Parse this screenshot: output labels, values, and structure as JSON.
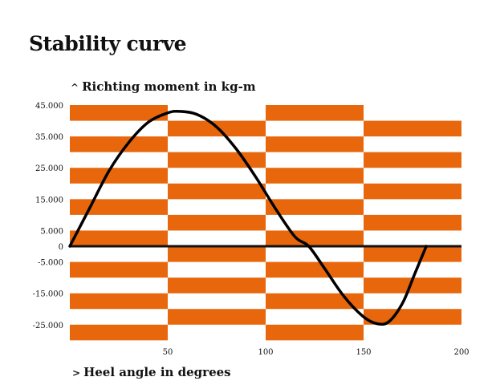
{
  "chart_data": {
    "type": "line",
    "title": "Stability curve",
    "ylabel": "Richting moment in kg-m",
    "xlabel": "Heel angle in degrees",
    "ylabel_arrow": "^",
    "xlabel_arrow": ">",
    "xlim": [
      0,
      200
    ],
    "ylim": [
      -30000,
      45000
    ],
    "x_ticks": [
      50,
      100,
      150,
      200
    ],
    "y_ticks": [
      {
        "value": 45000,
        "label": "45.000"
      },
      {
        "value": 35000,
        "label": "35.000"
      },
      {
        "value": 25000,
        "label": "25.000"
      },
      {
        "value": 15000,
        "label": "15.000"
      },
      {
        "value": 5000,
        "label": "5.000"
      },
      {
        "value": 0,
        "label": "0"
      },
      {
        "value": -5000,
        "label": "-5.000"
      },
      {
        "value": -15000,
        "label": "-15.000"
      },
      {
        "value": -25000,
        "label": "-25.000"
      }
    ],
    "grid": false,
    "background_stripes": {
      "color": "#E8670C",
      "columns": [
        {
          "x_start": 0,
          "x_end": 50,
          "y_top": 45000
        },
        {
          "x_start": 50,
          "x_end": 100,
          "y_top": 40000
        },
        {
          "x_start": 100,
          "x_end": 150,
          "y_top": 45000
        },
        {
          "x_start": 150,
          "x_end": 200,
          "y_top": 40000
        }
      ]
    },
    "series": [
      {
        "color": "#000000",
        "points": [
          [
            0,
            0
          ],
          [
            10,
            12000
          ],
          [
            20,
            24000
          ],
          [
            30,
            33000
          ],
          [
            40,
            39500
          ],
          [
            50,
            42500
          ],
          [
            56,
            43000
          ],
          [
            65,
            42000
          ],
          [
            75,
            38000
          ],
          [
            85,
            31000
          ],
          [
            95,
            22000
          ],
          [
            105,
            12000
          ],
          [
            115,
            3000
          ],
          [
            122,
            0
          ],
          [
            130,
            -7000
          ],
          [
            140,
            -16000
          ],
          [
            150,
            -22500
          ],
          [
            157,
            -24700
          ],
          [
            163,
            -24000
          ],
          [
            170,
            -18000
          ],
          [
            176,
            -9000
          ],
          [
            182,
            0
          ]
        ]
      }
    ]
  }
}
